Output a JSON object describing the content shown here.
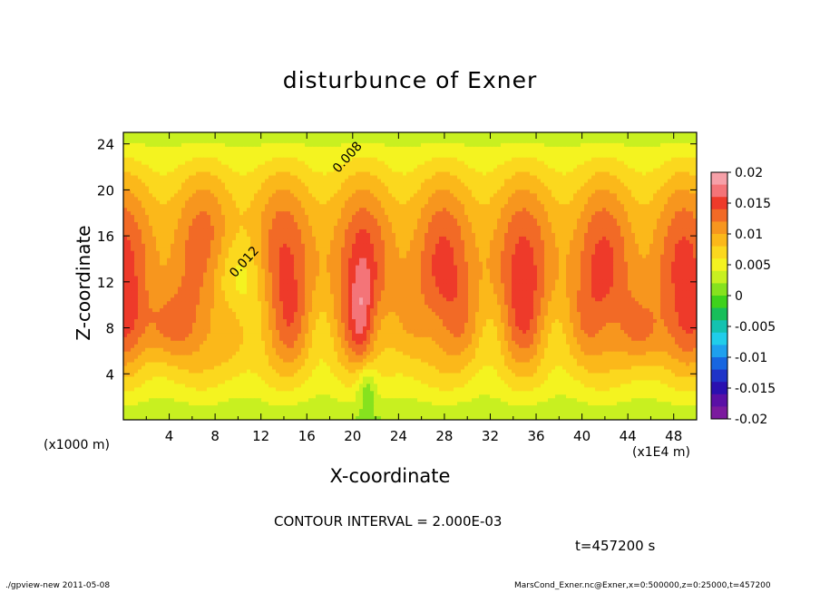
{
  "title": "disturbunce of Exner",
  "footer": {
    "left": "./gpview-new   2011-05-08",
    "right": "MarsCond_Exner.nc@Exner,x=0:500000,z=0:25000,t=457200"
  },
  "annotations": {
    "contour_interval": "CONTOUR INTERVAL = 2.000E-03",
    "time": "t=457200 s",
    "x_unit_left": "(x1000 m)",
    "x_unit_right": "(x1E4 m)"
  },
  "chart_data": {
    "type": "heatmap",
    "title": "disturbunce of Exner",
    "xlabel": "X-coordinate",
    "ylabel": "Z-coordinate",
    "xlim": [
      0,
      50
    ],
    "ylim": [
      0,
      25
    ],
    "x_ticks": [
      "4",
      "8",
      "12",
      "16",
      "20",
      "24",
      "28",
      "32",
      "36",
      "40",
      "44",
      "48"
    ],
    "y_ticks": [
      "4",
      "8",
      "12",
      "16",
      "20",
      "24"
    ],
    "contour_labels": [
      {
        "text": "0.008",
        "x": 19.8,
        "z": 22.6
      },
      {
        "text": "0.012",
        "x": 10.8,
        "z": 13.5
      }
    ],
    "contour_interval": 0.002,
    "colorbar": {
      "range": [
        -0.02,
        0.02
      ],
      "tick_labels": [
        "0.02",
        "0.015",
        "0.01",
        "0.005",
        "0",
        "-0.005",
        "-0.01",
        "-0.015",
        "-0.02"
      ],
      "colors": [
        "#f6a0a8",
        "#f47478",
        "#ee3a2a",
        "#f26a26",
        "#f7961e",
        "#fbb81a",
        "#fbd81e",
        "#f4f320",
        "#c8f020",
        "#86e21e",
        "#3ed21c",
        "#17be5a",
        "#14c2b0",
        "#20cdea",
        "#1ea0ee",
        "#1766e0",
        "#1f34c8",
        "#2a10b0",
        "#5a10a6",
        "#7b1a9e"
      ]
    }
  }
}
